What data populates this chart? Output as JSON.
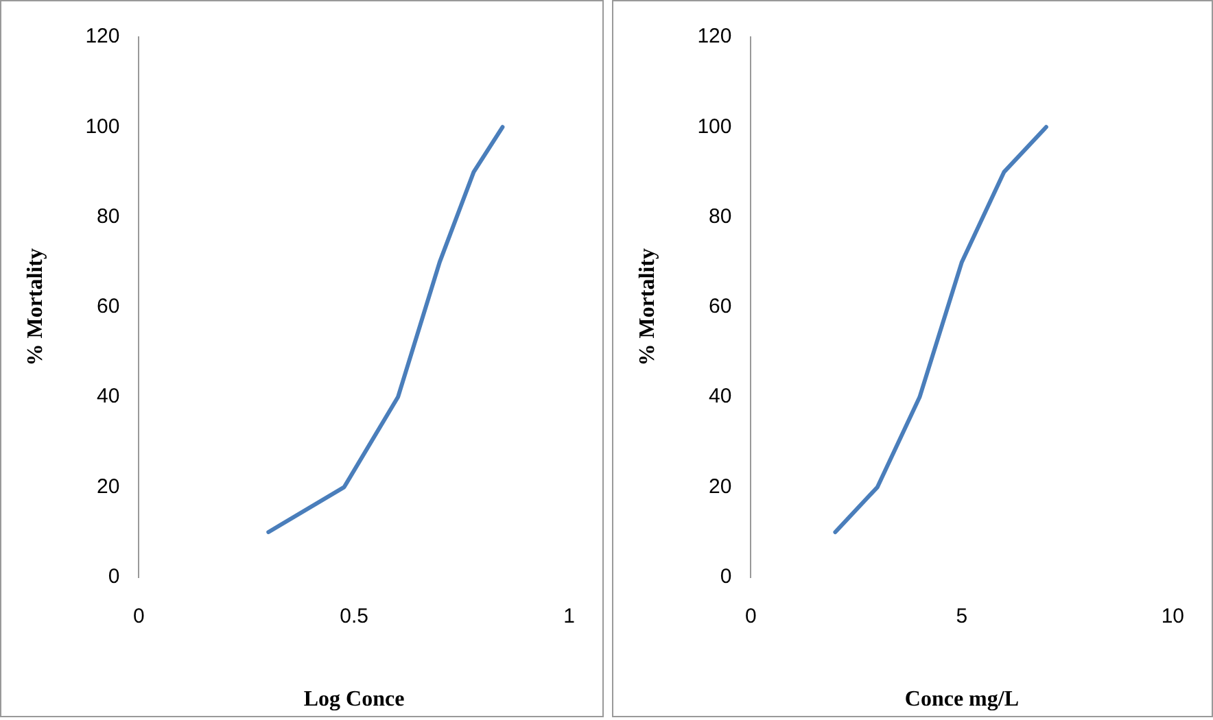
{
  "chart_data": [
    {
      "type": "line",
      "xlabel": "Log Conce",
      "ylabel": "% Mortality",
      "x": [
        0.301,
        0.477,
        0.602,
        0.699,
        0.778,
        0.845
      ],
      "series": [
        {
          "color": "#4a7ebb",
          "values": [
            10,
            20,
            40,
            70,
            90,
            100
          ]
        }
      ],
      "xlim": [
        0,
        1
      ],
      "xticks": [
        0,
        0.5,
        1
      ],
      "ylim": [
        0,
        120
      ],
      "yticks": [
        0,
        20,
        40,
        60,
        80,
        100,
        120
      ],
      "grid": false,
      "legend": false,
      "marker": "none",
      "line_style": "solid"
    },
    {
      "type": "line",
      "xlabel": "Conce mg/L",
      "ylabel": "% Mortality",
      "x": [
        2,
        3,
        4,
        5,
        6,
        7
      ],
      "series": [
        {
          "color": "#4a7ebb",
          "values": [
            10,
            20,
            40,
            70,
            90,
            100
          ]
        }
      ],
      "xlim": [
        0,
        10
      ],
      "xticks": [
        0,
        5,
        10
      ],
      "ylim": [
        0,
        120
      ],
      "yticks": [
        0,
        20,
        40,
        60,
        80,
        100,
        120
      ],
      "grid": false,
      "legend": false,
      "marker": "none",
      "line_style": "solid"
    }
  ]
}
